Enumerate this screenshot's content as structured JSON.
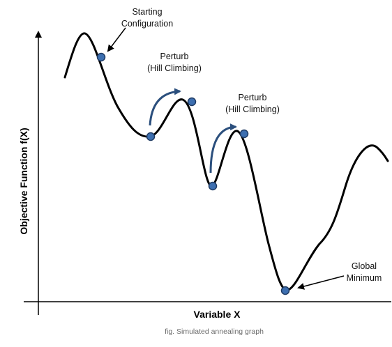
{
  "axes": {
    "x_label": "Variable X",
    "y_label": "Objective Function f(X)"
  },
  "annotations": {
    "start": {
      "line1": "Starting",
      "line2": "Configuration"
    },
    "perturb1": {
      "line1": "Perturb",
      "line2": "(Hill Climbing)"
    },
    "perturb2": {
      "line1": "Perturb",
      "line2": "(Hill Climbing)"
    },
    "global_min": {
      "line1": "Global",
      "line2": "Minimum"
    }
  },
  "caption": "fig. Simulated annealing graph",
  "colors": {
    "curve": "#000000",
    "point_fill": "#3d6fb0",
    "point_stroke": "#1f3b63",
    "perturb_arrow": "#2b4f7d",
    "caption_text": "#6b6b6b"
  }
}
